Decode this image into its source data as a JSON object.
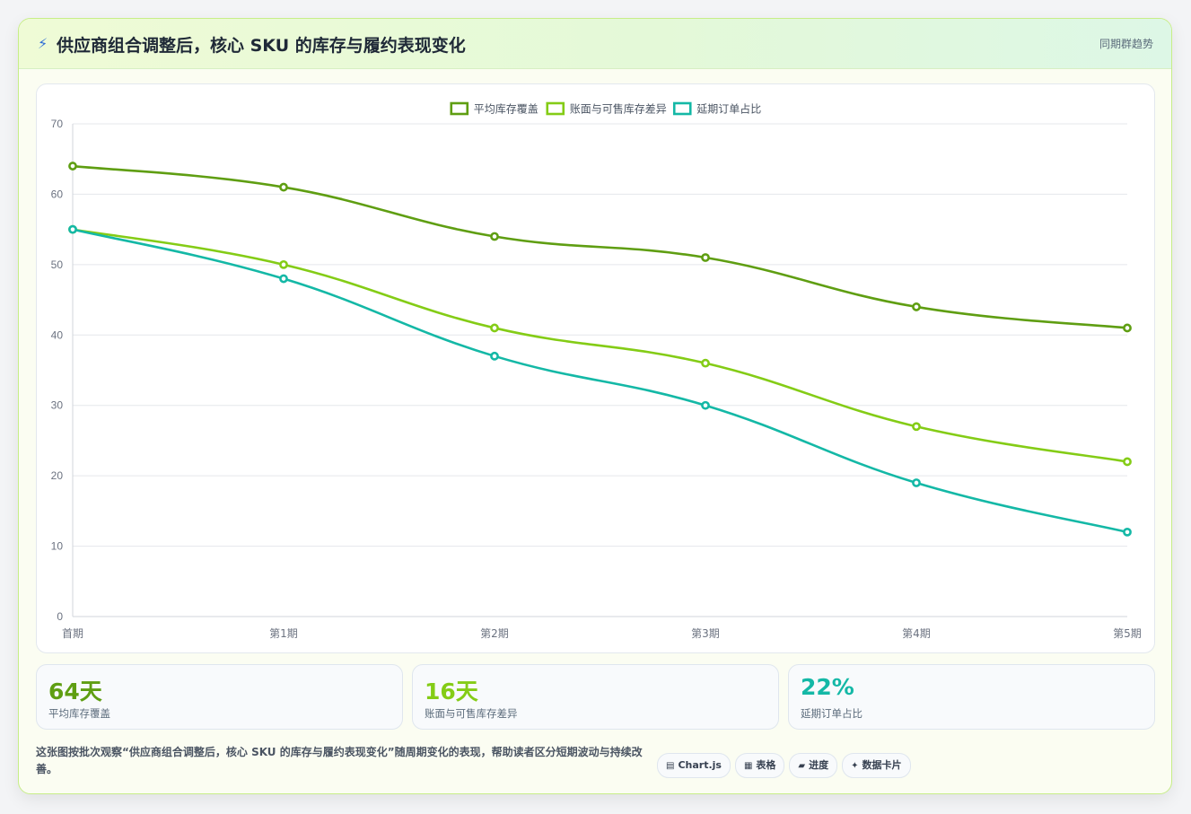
{
  "header": {
    "title": "供应商组合调整后，核心 SKU 的库存与履约表现变化",
    "badge": "同期群趋势"
  },
  "chart_data": {
    "type": "line",
    "categories": [
      "首期",
      "第1期",
      "第2期",
      "第3期",
      "第4期",
      "第5期"
    ],
    "series": [
      {
        "name": "平均库存覆盖",
        "values": [
          64,
          61,
          54,
          51,
          44,
          41
        ],
        "color": "#5f9e12"
      },
      {
        "name": "账面与可售库存差异",
        "values": [
          55,
          50,
          41,
          36,
          27,
          22
        ],
        "color": "#84cc16"
      },
      {
        "name": "延期订单占比",
        "values": [
          55,
          48,
          37,
          30,
          19,
          12
        ],
        "color": "#14b8a6"
      }
    ],
    "ylim": [
      0,
      70
    ],
    "yticks": [
      0,
      10,
      20,
      30,
      40,
      50,
      60,
      70
    ],
    "grid": true,
    "legend": "top-center"
  },
  "stats": [
    {
      "value": "64天",
      "label": "平均库存覆盖",
      "color": "#5f9e12"
    },
    {
      "value": "16天",
      "label": "账面与可售库存差异",
      "color": "#84cc16"
    },
    {
      "value": "22%",
      "label": "延期订单占比",
      "color": "#14b8a6"
    }
  ],
  "description": "这张图按批次观察“供应商组合调整后，核心 SKU 的库存与履约表现变化”随周期变化的表现，帮助读者区分短期波动与持续改善。",
  "chips": [
    {
      "icon": "chart-icon",
      "glyph": "▤",
      "label": "Chart.js"
    },
    {
      "icon": "table-icon",
      "glyph": "▦",
      "label": "表格"
    },
    {
      "icon": "progress-icon",
      "glyph": "▰",
      "label": "进度"
    },
    {
      "icon": "card-icon",
      "glyph": "✦",
      "label": "数据卡片"
    }
  ]
}
